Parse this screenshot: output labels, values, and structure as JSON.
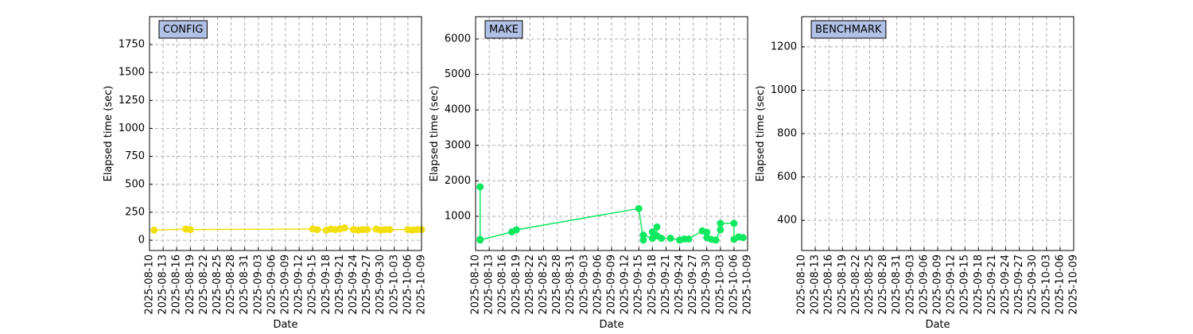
{
  "chart_data": [
    {
      "type": "line",
      "title": "CONFIG",
      "x_label": "Date",
      "y_label": "Elapsed time (sec)",
      "color": "#f2df10",
      "grid": true,
      "x": [
        "2025-08-11",
        "2025-08-18",
        "2025-08-19",
        "2025-09-15",
        "2025-09-16",
        "2025-09-18",
        "2025-09-19",
        "2025-09-20",
        "2025-09-21",
        "2025-09-22",
        "2025-09-24",
        "2025-09-25",
        "2025-09-26",
        "2025-09-27",
        "2025-09-29",
        "2025-09-30",
        "2025-10-01",
        "2025-10-02",
        "2025-10-06",
        "2025-10-07",
        "2025-10-08",
        "2025-10-09"
      ],
      "values": [
        90,
        100,
        95,
        100,
        95,
        90,
        100,
        95,
        100,
        110,
        95,
        90,
        95,
        95,
        100,
        90,
        95,
        95,
        95,
        90,
        95,
        95
      ],
      "xlim": [
        "2025-08-10",
        "2025-10-09"
      ],
      "xticks": [
        "2025-08-10",
        "2025-08-13",
        "2025-08-16",
        "2025-08-19",
        "2025-08-22",
        "2025-08-25",
        "2025-08-28",
        "2025-08-31",
        "2025-09-03",
        "2025-09-06",
        "2025-09-09",
        "2025-09-12",
        "2025-09-15",
        "2025-09-18",
        "2025-09-21",
        "2025-09-24",
        "2025-09-27",
        "2025-09-30",
        "2025-10-03",
        "2025-10-06",
        "2025-10-09"
      ],
      "ylim": [
        -92,
        1999
      ],
      "yticks": [
        0,
        250,
        500,
        750,
        1000,
        1250,
        1500,
        1750
      ]
    },
    {
      "type": "line",
      "title": "MAKE",
      "x_label": "Date",
      "y_label": "Elapsed time (sec)",
      "color": "#10e860",
      "grid": true,
      "x": [
        "2025-08-11",
        "2025-08-11",
        "2025-08-11",
        "2025-08-18",
        "2025-08-19",
        "2025-09-15",
        "2025-09-16",
        "2025-09-16",
        "2025-09-18",
        "2025-09-18",
        "2025-09-19",
        "2025-09-19",
        "2025-09-20",
        "2025-09-22",
        "2025-09-24",
        "2025-09-25",
        "2025-09-26",
        "2025-09-29",
        "2025-09-30",
        "2025-09-30",
        "2025-10-01",
        "2025-10-02",
        "2025-10-03",
        "2025-10-03",
        "2025-10-06",
        "2025-10-06",
        "2025-10-07",
        "2025-10-08"
      ],
      "values": [
        1830,
        350,
        330,
        560,
        620,
        1220,
        330,
        470,
        380,
        560,
        700,
        450,
        380,
        380,
        330,
        360,
        360,
        590,
        550,
        400,
        350,
        330,
        620,
        800,
        800,
        350,
        420,
        400
      ],
      "xlim": [
        "2025-08-10",
        "2025-10-09"
      ],
      "xticks": [
        "2025-08-10",
        "2025-08-13",
        "2025-08-16",
        "2025-08-19",
        "2025-08-22",
        "2025-08-25",
        "2025-08-28",
        "2025-08-31",
        "2025-09-03",
        "2025-09-06",
        "2025-09-09",
        "2025-09-12",
        "2025-09-15",
        "2025-09-18",
        "2025-09-21",
        "2025-09-24",
        "2025-09-27",
        "2025-09-30",
        "2025-10-03",
        "2025-10-06",
        "2025-10-09"
      ],
      "ylim": [
        36,
        6628
      ],
      "yticks": [
        1000,
        2000,
        3000,
        4000,
        5000,
        6000
      ]
    },
    {
      "type": "line",
      "title": "BENCHMARK",
      "x_label": "Date",
      "y_label": "Elapsed time (sec)",
      "color": "#1f77b4",
      "grid": true,
      "x": [],
      "values": [],
      "xlim": [
        "2025-08-10",
        "2025-10-09"
      ],
      "xticks": [
        "2025-08-10",
        "2025-08-13",
        "2025-08-16",
        "2025-08-19",
        "2025-08-22",
        "2025-08-25",
        "2025-08-28",
        "2025-08-31",
        "2025-09-03",
        "2025-09-06",
        "2025-09-09",
        "2025-09-12",
        "2025-09-15",
        "2025-09-18",
        "2025-09-21",
        "2025-09-24",
        "2025-09-27",
        "2025-09-30",
        "2025-10-03",
        "2025-10-06",
        "2025-10-09"
      ],
      "ylim": [
        261,
        1339
      ],
      "yticks": [
        400,
        600,
        800,
        1000,
        1200
      ]
    }
  ]
}
